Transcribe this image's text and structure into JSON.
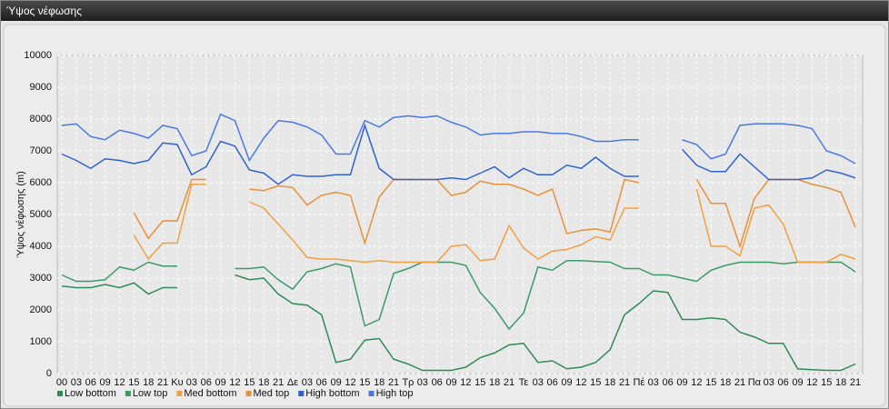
{
  "chart_data": {
    "type": "line",
    "title": "Ύψος νέφωσης",
    "y_label": "Ύψος νέφωσης (m)",
    "categories": [
      "00",
      "03",
      "06",
      "09",
      "12",
      "15",
      "18",
      "21",
      "Κυ",
      "03",
      "06",
      "09",
      "12",
      "15",
      "18",
      "21",
      "Δε",
      "03",
      "06",
      "09",
      "12",
      "15",
      "18",
      "21",
      "Τρ",
      "03",
      "06",
      "09",
      "12",
      "15",
      "18",
      "21",
      "Τε",
      "03",
      "06",
      "09",
      "12",
      "15",
      "18",
      "21",
      "Πέ",
      "03",
      "06",
      "09",
      "12",
      "15",
      "18",
      "21",
      "Πα",
      "03",
      "06",
      "09",
      "12",
      "15",
      "18",
      "21"
    ],
    "ylim": [
      0,
      10000
    ],
    "yticks": [
      0,
      1000,
      2000,
      3000,
      4000,
      5000,
      6000,
      7000,
      8000,
      9000,
      10000
    ],
    "grid": true,
    "legend": "bottom",
    "series": [
      {
        "name": "Low bottom",
        "color": "#2e8b57",
        "values": [
          2750,
          2700,
          2700,
          2800,
          2700,
          2850,
          2500,
          2700,
          2700,
          null,
          null,
          null,
          3100,
          2950,
          3000,
          2500,
          2200,
          2150,
          1850,
          350,
          450,
          1050,
          1100,
          450,
          300,
          100,
          100,
          100,
          200,
          500,
          650,
          900,
          950,
          350,
          400,
          150,
          200,
          350,
          750,
          1850,
          2200,
          2600,
          2550,
          1700,
          1700,
          1750,
          1700,
          1300,
          1150,
          950,
          950,
          150,
          120,
          100,
          100,
          300
        ]
      },
      {
        "name": "Low top",
        "color": "#3a9a68",
        "values": [
          3100,
          2900,
          2900,
          2950,
          3350,
          3250,
          3500,
          3380,
          3380,
          null,
          null,
          null,
          3300,
          3300,
          3350,
          2950,
          2650,
          3200,
          3300,
          3450,
          3350,
          1500,
          1700,
          3150,
          3300,
          3500,
          3500,
          3500,
          3400,
          2550,
          2050,
          1400,
          1900,
          3350,
          3250,
          3550,
          3550,
          3520,
          3500,
          3300,
          3300,
          3100,
          3100,
          3000,
          2900,
          3250,
          3400,
          3500,
          3500,
          3500,
          3450,
          3500,
          3500,
          3500,
          3500,
          3200
        ]
      },
      {
        "name": "Med bottom",
        "color": "#f0a040",
        "values": [
          null,
          null,
          null,
          null,
          null,
          4350,
          3600,
          4100,
          4100,
          5950,
          5950,
          null,
          null,
          5400,
          5200,
          4700,
          4200,
          3650,
          3600,
          3600,
          3550,
          3500,
          3550,
          3500,
          3500,
          3500,
          3500,
          4000,
          4050,
          3550,
          3600,
          4650,
          3950,
          3600,
          3850,
          3900,
          4050,
          4300,
          4200,
          5200,
          5200,
          null,
          null,
          null,
          5800,
          4000,
          4000,
          3700,
          5200,
          5300,
          4700,
          3500,
          3500,
          3500,
          3750,
          3600
        ]
      },
      {
        "name": "Med top",
        "color": "#e8903a",
        "values": [
          null,
          null,
          null,
          null,
          null,
          5050,
          4250,
          4800,
          4800,
          6100,
          6100,
          null,
          null,
          5800,
          5750,
          5900,
          5850,
          5300,
          5600,
          5700,
          5600,
          4100,
          5550,
          6100,
          6100,
          6100,
          6100,
          5600,
          5700,
          6050,
          5950,
          5950,
          5800,
          5600,
          5800,
          4400,
          4500,
          4550,
          4450,
          6100,
          6000,
          null,
          null,
          null,
          6100,
          5350,
          5350,
          4000,
          5500,
          6100,
          6100,
          6100,
          5950,
          5850,
          5700,
          4600
        ]
      },
      {
        "name": "High bottom",
        "color": "#2f62d0",
        "values": [
          6900,
          6700,
          6450,
          6750,
          6700,
          6600,
          6700,
          7250,
          7200,
          6250,
          6500,
          7300,
          7150,
          6400,
          6300,
          5950,
          6250,
          6200,
          6200,
          6250,
          6250,
          7800,
          6450,
          6100,
          6100,
          6100,
          6100,
          6150,
          6100,
          6300,
          6500,
          6150,
          6450,
          6250,
          6250,
          6550,
          6450,
          6800,
          6450,
          6200,
          6200,
          null,
          null,
          7050,
          6550,
          6350,
          6350,
          6900,
          6500,
          6100,
          6100,
          6100,
          6150,
          6400,
          6300,
          6150
        ]
      },
      {
        "name": "High top",
        "color": "#4a7ae0",
        "values": [
          7800,
          7850,
          7450,
          7350,
          7650,
          7550,
          7400,
          7800,
          7700,
          6850,
          7000,
          8150,
          7950,
          6700,
          7400,
          7950,
          7900,
          7750,
          7500,
          6900,
          6900,
          7950,
          7750,
          8050,
          8100,
          8050,
          8100,
          7900,
          7750,
          7500,
          7550,
          7550,
          7600,
          7600,
          7550,
          7550,
          7450,
          7300,
          7300,
          7350,
          7350,
          null,
          null,
          7350,
          7200,
          6750,
          6900,
          7800,
          7850,
          7850,
          7850,
          7800,
          7700,
          7000,
          6850,
          6600
        ]
      }
    ]
  }
}
